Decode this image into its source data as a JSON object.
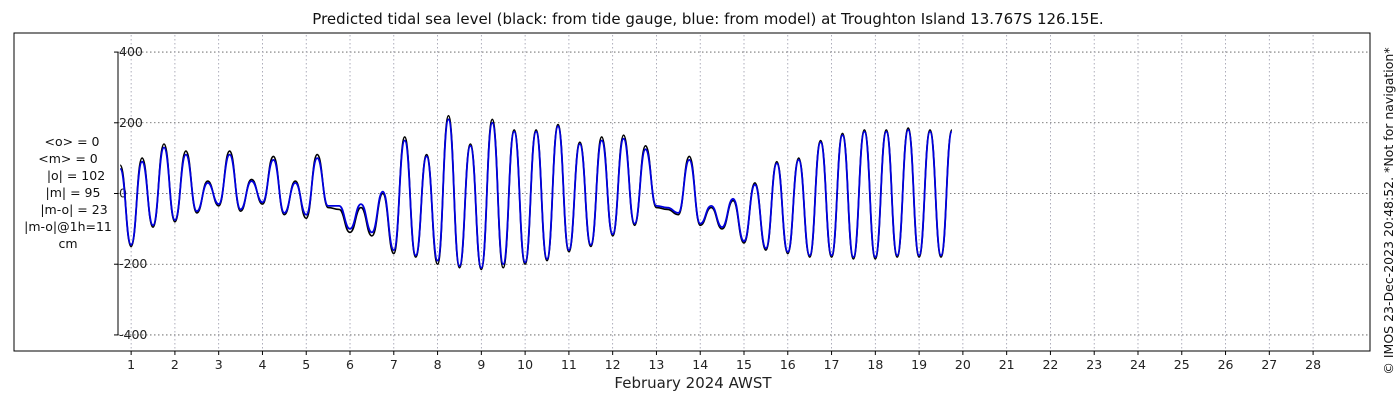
{
  "chart_data": {
    "type": "line",
    "title": "Predicted tidal sea level (black: from tide gauge, blue: from model) at Troughton Island 13.767S 126.15E.",
    "xlabel": "February 2024 AWST",
    "ylabel": "",
    "ylim": [
      -420,
      420
    ],
    "y_ticks": [
      -400,
      -200,
      0,
      200,
      400
    ],
    "y_tick_labels": [
      "-400",
      "-200",
      "0",
      "200",
      "400"
    ],
    "xlim": [
      0.7,
      29.3
    ],
    "x_ticks": [
      1,
      2,
      3,
      4,
      5,
      6,
      7,
      8,
      9,
      10,
      11,
      12,
      13,
      14,
      15,
      16,
      17,
      18,
      19,
      20,
      21,
      22,
      23,
      24,
      25,
      26,
      27,
      28
    ],
    "x_tick_labels": [
      "1",
      "2",
      "3",
      "4",
      "5",
      "6",
      "7",
      "8",
      "9",
      "10",
      "11",
      "12",
      "13",
      "14",
      "15",
      "16",
      "17",
      "18",
      "19",
      "20",
      "21",
      "22",
      "23",
      "24",
      "25",
      "26",
      "27",
      "28"
    ],
    "grid": true,
    "x_step_days": 0.25,
    "series": [
      {
        "label": "tide gauge",
        "color": "#000000",
        "x_start": 0.75,
        "values": [
          80,
          -150,
          100,
          -95,
          140,
          -80,
          120,
          -55,
          35,
          -35,
          120,
          -50,
          40,
          -30,
          105,
          -60,
          35,
          -70,
          110,
          -40,
          -45,
          -110,
          -40,
          -120,
          0,
          -170,
          160,
          -180,
          110,
          -200,
          220,
          -210,
          140,
          -215,
          210,
          -210,
          180,
          -200,
          180,
          -190,
          195,
          -165,
          145,
          -150,
          160,
          -120,
          165,
          -90,
          135,
          -40,
          -45,
          -60,
          105,
          -90,
          -40,
          -100,
          -20,
          -140,
          30,
          -160,
          90,
          -170,
          100,
          -180,
          150,
          -180,
          170,
          -185,
          180,
          -185,
          180,
          -180,
          185,
          -180,
          180,
          -180,
          180
        ]
      },
      {
        "label": "model",
        "color": "#0000dd",
        "x_start": 0.75,
        "values": [
          70,
          -145,
          90,
          -90,
          130,
          -75,
          110,
          -50,
          30,
          -30,
          110,
          -45,
          35,
          -25,
          95,
          -55,
          30,
          -60,
          100,
          -35,
          -35,
          -100,
          -30,
          -110,
          5,
          -160,
          150,
          -175,
          105,
          -190,
          210,
          -205,
          135,
          -210,
          200,
          -200,
          175,
          -195,
          175,
          -185,
          190,
          -160,
          140,
          -145,
          150,
          -115,
          155,
          -85,
          125,
          -35,
          -40,
          -55,
          95,
          -85,
          -35,
          -95,
          -15,
          -135,
          25,
          -155,
          85,
          -165,
          95,
          -175,
          145,
          -175,
          165,
          -180,
          175,
          -180,
          175,
          -175,
          180,
          -175,
          175,
          -175,
          175
        ]
      }
    ],
    "side_stats": [
      "<o> = 0",
      "<m> = 0",
      "|o| = 102",
      "|m| = 95",
      "|m-o| = 23",
      "|m-o|@1h=11",
      "cm"
    ],
    "credit": "© IMOS 23-Dec-2023 20:48:52. *Not for navigation*"
  }
}
